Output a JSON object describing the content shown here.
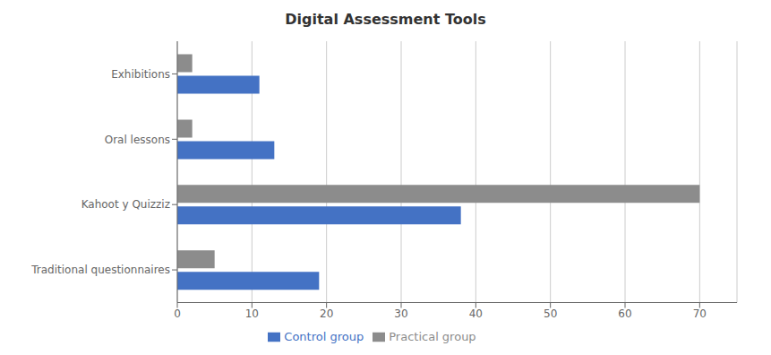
{
  "chart_data": {
    "type": "bar",
    "orientation": "horizontal",
    "title": "Digital Assessment Tools",
    "categories": [
      "Traditional questionnaires",
      "Kahoot y Quizziz",
      "Oral lessons",
      "Exhibitions"
    ],
    "series": [
      {
        "name": "Practical group",
        "color": "#8C8C8C",
        "values": [
          5,
          70,
          2,
          2
        ]
      },
      {
        "name": "Control group",
        "color": "#4472C4",
        "values": [
          19,
          38,
          13,
          11
        ]
      }
    ],
    "xlim": [
      0,
      75
    ],
    "xticks": [
      0,
      10,
      20,
      30,
      40,
      50,
      60,
      70
    ],
    "grid": true,
    "legend": "bottom"
  }
}
